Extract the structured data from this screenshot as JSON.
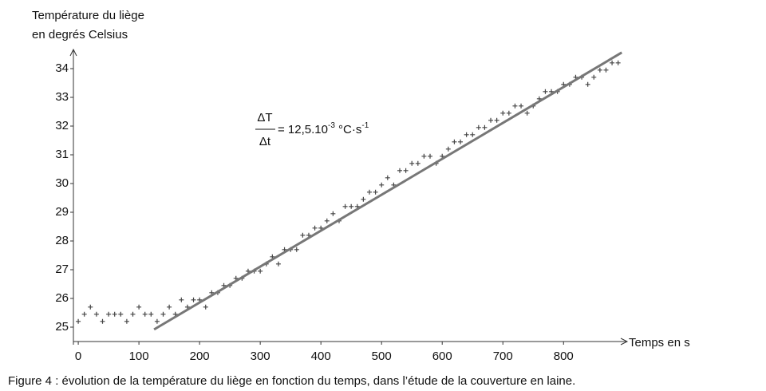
{
  "chart_data": {
    "type": "scatter",
    "y_label_lines": [
      "Température du liège",
      "en degrés Celsius"
    ],
    "x_label": "Temps en s",
    "caption": "Figure 4 : évolution de la température du liège en fonction du temps, dans l’étude de la couverture en laine.",
    "annotation": {
      "numerator": "ΔT",
      "denominator": "Δt",
      "text": "= 12,5.10",
      "exponent1": "-3",
      "unit": " °C·s",
      "exponent2": "-1"
    },
    "xlim": [
      -8,
      897
    ],
    "ylim": [
      24.5,
      34.5
    ],
    "xticks": [
      0,
      100,
      200,
      300,
      400,
      500,
      600,
      700,
      800
    ],
    "yticks": [
      25,
      26,
      27,
      28,
      29,
      30,
      31,
      32,
      33,
      34
    ],
    "points": {
      "color": "#444444",
      "x": [
        0,
        10,
        20,
        30,
        40,
        50,
        60,
        70,
        80,
        90,
        100,
        110,
        120,
        130,
        140,
        150,
        160,
        170,
        180,
        190,
        200,
        210,
        220,
        230,
        240,
        250,
        260,
        270,
        280,
        290,
        300,
        310,
        320,
        330,
        340,
        350,
        360,
        370,
        380,
        390,
        400,
        410,
        420,
        430,
        440,
        450,
        460,
        470,
        480,
        490,
        500,
        510,
        520,
        530,
        540,
        550,
        560,
        570,
        580,
        590,
        600,
        610,
        620,
        630,
        640,
        650,
        660,
        670,
        680,
        690,
        700,
        710,
        720,
        730,
        740,
        750,
        760,
        770,
        780,
        790,
        800,
        810,
        820,
        830,
        840,
        850,
        860,
        870,
        880,
        890
      ],
      "y": [
        25.2,
        25.45,
        25.7,
        25.45,
        25.2,
        25.45,
        25.45,
        25.45,
        25.2,
        25.45,
        25.7,
        25.45,
        25.45,
        25.2,
        25.45,
        25.7,
        25.45,
        25.95,
        25.7,
        25.95,
        25.95,
        25.7,
        26.2,
        26.2,
        26.45,
        26.45,
        26.7,
        26.7,
        26.95,
        26.95,
        26.95,
        27.2,
        27.45,
        27.2,
        27.7,
        27.7,
        27.7,
        28.2,
        28.2,
        28.45,
        28.45,
        28.7,
        28.95,
        28.7,
        29.2,
        29.2,
        29.2,
        29.45,
        29.7,
        29.7,
        29.95,
        30.2,
        29.95,
        30.45,
        30.45,
        30.7,
        30.7,
        30.95,
        30.95,
        30.7,
        30.95,
        31.2,
        31.45,
        31.45,
        31.7,
        31.7,
        31.95,
        31.95,
        32.2,
        32.2,
        32.45,
        32.45,
        32.7,
        32.7,
        32.45,
        32.7,
        32.95,
        33.2,
        33.2,
        33.2,
        33.45,
        33.45,
        33.7,
        33.7,
        33.45,
        33.7,
        33.95,
        33.95,
        34.2,
        34.2
      ]
    },
    "fit": {
      "color": "#777777",
      "x": [
        125,
        896
      ],
      "y": [
        24.92,
        34.56
      ]
    }
  }
}
